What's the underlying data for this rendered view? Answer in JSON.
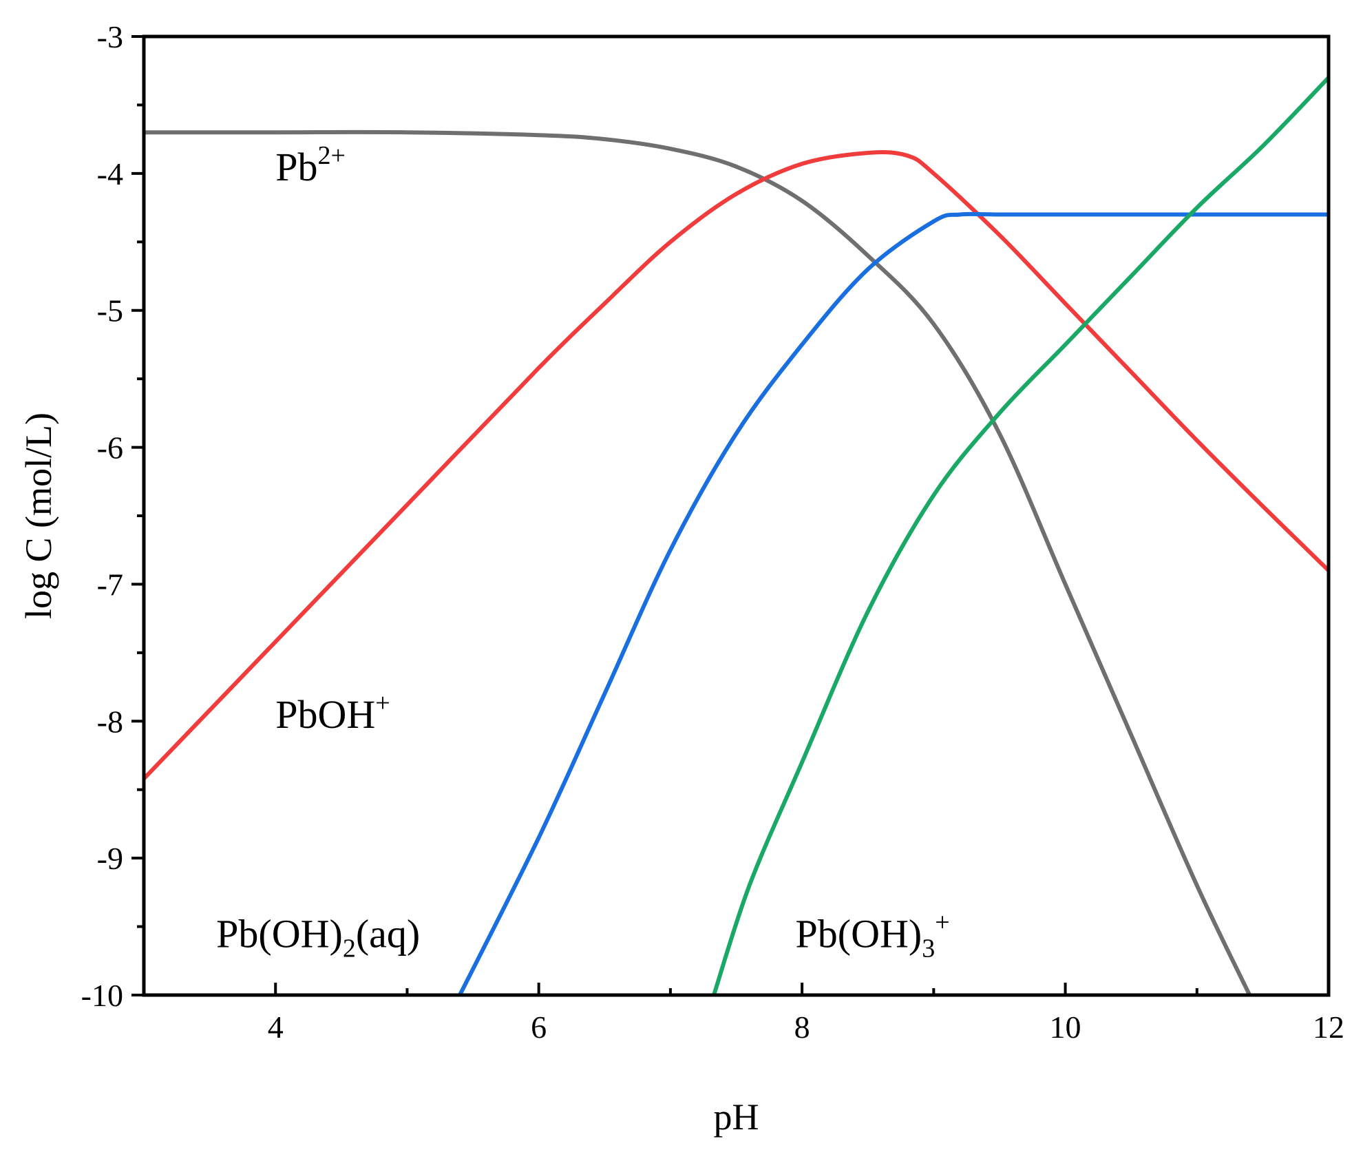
{
  "chart_data": {
    "type": "line",
    "xlabel": "pH",
    "ylabel": "log C (mol/L)",
    "xlim": [
      3,
      12
    ],
    "ylim": [
      -10,
      -3
    ],
    "xticks": [
      4,
      6,
      8,
      10,
      12
    ],
    "yticks": [
      -3,
      -4,
      -5,
      -6,
      -7,
      -8,
      -9,
      -10
    ],
    "x_minor_step": 1,
    "y_minor_step": 0.5,
    "grid": false,
    "legend": "none",
    "series": [
      {
        "color": "#6f6f6f",
        "x": [
          3,
          4,
          5,
          6,
          6.5,
          7,
          7.5,
          8,
          8.5,
          9,
          9.5,
          10,
          10.5,
          11,
          11.4
        ],
        "y": [
          -3.7,
          -3.7,
          -3.7,
          -3.72,
          -3.75,
          -3.82,
          -3.95,
          -4.2,
          -4.6,
          -5.1,
          -5.9,
          -7.0,
          -8.1,
          -9.2,
          -10.0
        ]
      },
      {
        "color": "#f03c3c",
        "x": [
          3,
          4,
          5,
          6,
          6.5,
          7,
          7.5,
          8,
          8.5,
          8.8,
          9,
          9.5,
          10,
          10.5,
          11,
          11.5,
          12
        ],
        "y": [
          -8.42,
          -7.42,
          -6.42,
          -5.42,
          -4.95,
          -4.5,
          -4.15,
          -3.93,
          -3.85,
          -3.87,
          -4.0,
          -4.45,
          -4.95,
          -5.45,
          -5.95,
          -6.43,
          -6.9
        ]
      },
      {
        "color": "#1a6fe0",
        "x": [
          5.4,
          6,
          6.5,
          7,
          7.5,
          8,
          8.5,
          9,
          9.2,
          9.5,
          10,
          11,
          12
        ],
        "y": [
          -10.0,
          -8.85,
          -7.8,
          -6.75,
          -5.9,
          -5.25,
          -4.7,
          -4.35,
          -4.3,
          -4.3,
          -4.3,
          -4.3,
          -4.3
        ]
      },
      {
        "color": "#1aa866",
        "x": [
          7.33,
          7.6,
          8,
          8.5,
          9,
          9.5,
          10,
          10.5,
          11,
          11.5,
          12
        ],
        "y": [
          -10.0,
          -9.2,
          -8.3,
          -7.2,
          -6.35,
          -5.75,
          -5.25,
          -4.75,
          -4.25,
          -3.8,
          -3.3
        ]
      }
    ],
    "annotations": [
      {
        "parts": [
          {
            "t": "Pb",
            "s": ""
          },
          {
            "t": "2+",
            "s": "sup"
          }
        ],
        "x": 4.0,
        "y": -4.05
      },
      {
        "parts": [
          {
            "t": "PbOH",
            "s": ""
          },
          {
            "t": "+",
            "s": "sup"
          }
        ],
        "x": 4.0,
        "y": -8.05
      },
      {
        "parts": [
          {
            "t": "Pb(OH)",
            "s": ""
          },
          {
            "t": "2",
            "s": "sub"
          },
          {
            "t": "(aq)",
            "s": ""
          }
        ],
        "x": 3.55,
        "y": -9.65
      },
      {
        "parts": [
          {
            "t": "Pb(OH)",
            "s": ""
          },
          {
            "t": "3",
            "s": "sub"
          },
          {
            "t": "+",
            "s": "sup"
          }
        ],
        "x": 7.95,
        "y": -9.65
      }
    ]
  }
}
